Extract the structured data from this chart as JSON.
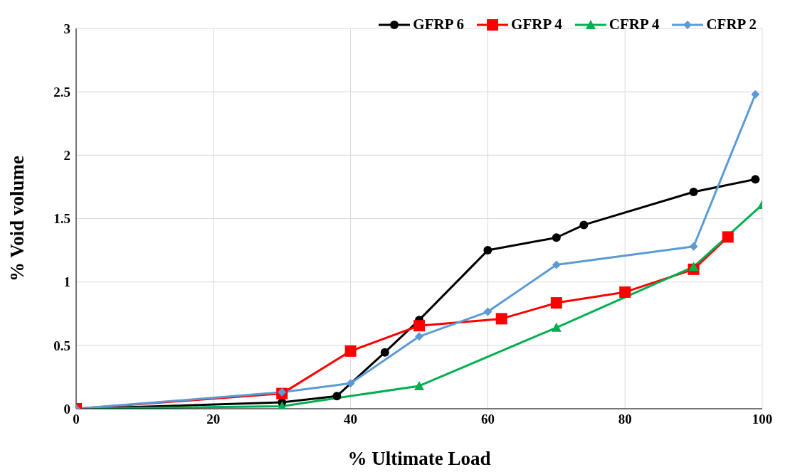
{
  "chart_data": {
    "type": "line",
    "xlabel": "% Ultimate Load",
    "ylabel": "% Void volume",
    "xlim": [
      0,
      100
    ],
    "xticks": [
      0,
      20,
      40,
      60,
      80,
      100
    ],
    "ylim": [
      0,
      3
    ],
    "yticks": [
      0,
      0.5,
      1,
      1.5,
      2,
      2.5,
      3
    ],
    "grid": true,
    "legend": "top right",
    "line_style": "solid",
    "series": [
      {
        "name": "GFRP 6",
        "color": "#000000",
        "marker": "circle",
        "x": [
          0,
          30,
          38,
          45,
          50,
          60,
          70,
          74,
          90,
          99
        ],
        "values": [
          0,
          0.05,
          0.1,
          0.445,
          0.7,
          1.25,
          1.35,
          1.45,
          1.71,
          1.81
        ]
      },
      {
        "name": "GFRP 4",
        "color": "#ff0000",
        "marker": "square",
        "x": [
          0,
          30,
          40,
          50,
          62,
          70,
          80,
          90,
          95
        ],
        "values": [
          0,
          0.12,
          0.455,
          0.655,
          0.71,
          0.835,
          0.92,
          1.1,
          1.355
        ]
      },
      {
        "name": "CFRP 4",
        "color": "#00b050",
        "marker": "triangle",
        "x": [
          0,
          30,
          50,
          70,
          90,
          100
        ],
        "values": [
          0,
          0.02,
          0.18,
          0.64,
          1.12,
          1.61
        ]
      },
      {
        "name": "CFRP 2",
        "color": "#5b9bd5",
        "marker": "diamond",
        "x": [
          0,
          30,
          40,
          50,
          60,
          70,
          90,
          99
        ],
        "values": [
          0,
          0.13,
          0.2,
          0.57,
          0.765,
          1.135,
          1.28,
          2.48
        ]
      }
    ]
  }
}
